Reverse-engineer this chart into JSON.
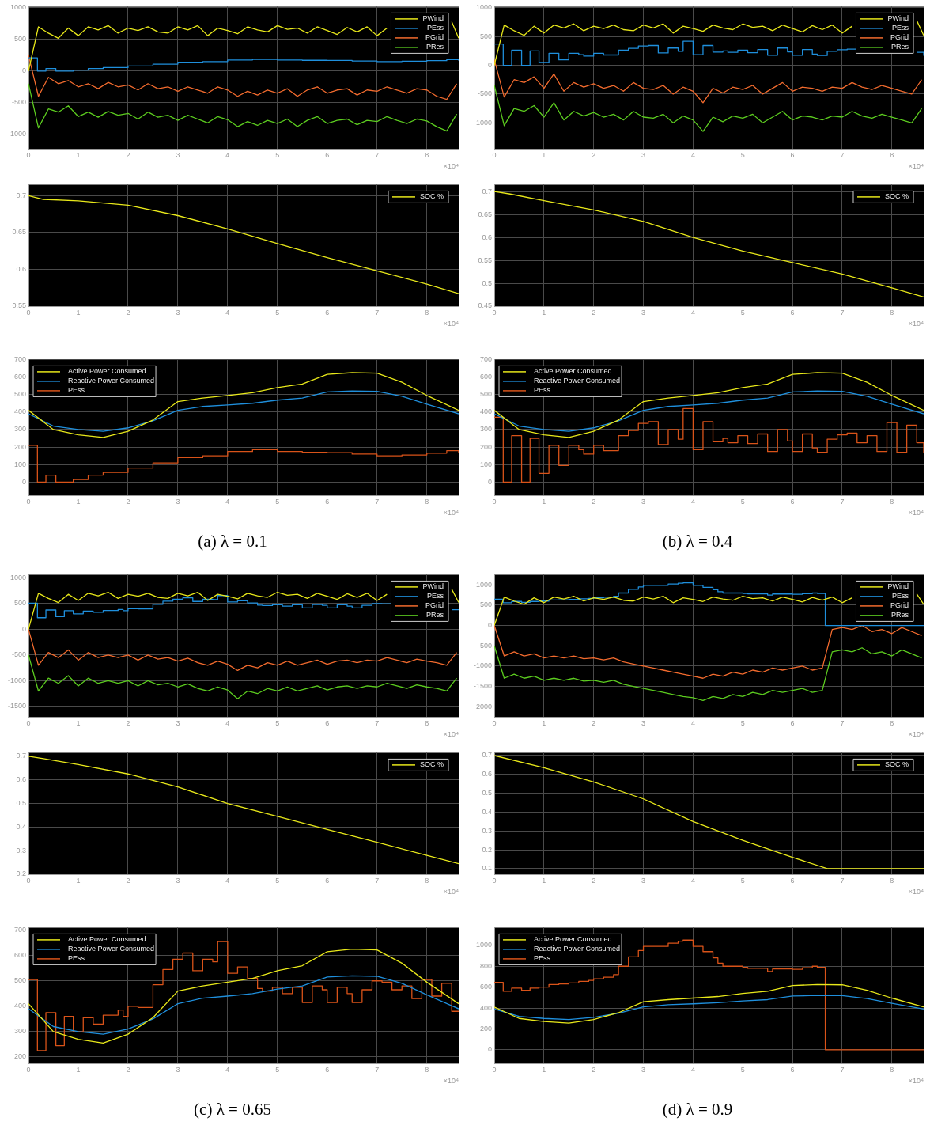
{
  "chart_data": [
    {
      "type": "line",
      "x": [
        0,
        0.2,
        0.4,
        0.6,
        0.8,
        1,
        1.2,
        1.4,
        1.6,
        1.8,
        2,
        2.2,
        2.4,
        2.6,
        2.8,
        3,
        3.2,
        3.4,
        3.6,
        3.8,
        4,
        4.2,
        4.4,
        4.6,
        4.8,
        5,
        5.2,
        5.4,
        5.6,
        5.8,
        6,
        6.2,
        6.4,
        6.6,
        6.8,
        7,
        7.2,
        7.4,
        7.6,
        7.8,
        8,
        8.2,
        8.4,
        8.6
      ],
      "xlim": [
        0,
        8.64
      ],
      "xticks": [
        0,
        1,
        2,
        3,
        4,
        5,
        6,
        7,
        8
      ],
      "xlabel": "×10⁴",
      "ylim": [
        -1230,
        1020
      ],
      "yticks": [
        -1000,
        -500,
        0,
        500,
        1000
      ],
      "grid": true,
      "legend": "top right",
      "series": [
        {
          "name": "PWind",
          "color": "#e8e81a",
          "x": [
            0,
            0.2,
            0.4,
            0.6,
            0.8,
            1,
            1.2,
            1.4,
            1.6,
            1.8,
            2,
            2.2,
            2.4,
            2.6,
            2.8,
            3,
            3.2,
            3.4,
            3.6,
            3.8,
            4,
            4.2,
            4.4,
            4.6,
            4.8,
            5,
            5.2,
            5.4,
            5.6,
            5.8,
            6,
            6.2,
            6.4,
            6.6,
            6.8,
            7,
            7.2,
            7.4,
            7.6,
            7.8,
            8,
            8.2,
            8.4,
            8.5,
            8.64
          ],
          "values": [
            0,
            700,
            600,
            520,
            680,
            560,
            700,
            650,
            720,
            600,
            680,
            640,
            700,
            620,
            600,
            700,
            650,
            720,
            560,
            680,
            640,
            590,
            700,
            650,
            620,
            720,
            660,
            680,
            600,
            700,
            640,
            580,
            690,
            620,
            700,
            560,
            680,
            null,
            null,
            null,
            null,
            null,
            null,
            780,
            520
          ]
        },
        {
          "name": "PEss",
          "color": "#1f8fdc",
          "type": "step",
          "x": [
            0,
            0.18,
            0.35,
            0.55,
            0.9,
            1.2,
            1.5,
            2,
            2.5,
            3,
            3.5,
            4,
            4.5,
            5,
            5.5,
            6,
            6.5,
            7,
            7.5,
            8,
            8.4,
            8.64
          ],
          "values": [
            210,
            0,
            40,
            0,
            15,
            40,
            55,
            80,
            110,
            140,
            150,
            175,
            185,
            175,
            170,
            168,
            160,
            150,
            155,
            165,
            180,
            165
          ]
        },
        {
          "name": "PGrid",
          "color": "#f26b2e",
          "values": [
            250,
            -400,
            -100,
            -200,
            -150,
            -250,
            -200,
            -280,
            -180,
            -250,
            -220,
            -300,
            -200,
            -280,
            -250,
            -320,
            -250,
            -300,
            -350,
            -250,
            -300,
            -400,
            -320,
            -380,
            -300,
            -350,
            -280,
            -400,
            -300,
            -250,
            -350,
            -300,
            -280,
            -380,
            -300,
            -320,
            -250,
            -300,
            -350,
            -280,
            -300,
            -400,
            -450,
            -200
          ]
        },
        {
          "name": "PRes",
          "color": "#5ccc1f",
          "values": [
            -200,
            -900,
            -600,
            -650,
            -550,
            -720,
            -650,
            -730,
            -640,
            -700,
            -670,
            -760,
            -650,
            -730,
            -700,
            -780,
            -700,
            -760,
            -820,
            -720,
            -770,
            -880,
            -800,
            -860,
            -780,
            -830,
            -760,
            -880,
            -780,
            -720,
            -830,
            -780,
            -760,
            -850,
            -780,
            -800,
            -720,
            -780,
            -830,
            -760,
            -790,
            -880,
            -950,
            -680
          ]
        }
      ]
    },
    {
      "type": "line",
      "x": [
        0,
        0.2,
        0.4,
        0.6,
        0.8,
        1,
        1.2,
        1.4,
        1.6,
        1.8,
        2,
        2.2,
        2.4,
        2.6,
        2.8,
        3,
        3.2,
        3.4,
        3.6,
        3.8,
        4,
        4.2,
        4.4,
        4.6,
        4.8,
        5,
        5.2,
        5.4,
        5.6,
        5.8,
        6,
        6.2,
        6.4,
        6.6,
        6.8,
        7,
        7.2,
        7.4,
        7.6,
        7.8,
        8,
        8.2,
        8.4,
        8.6
      ],
      "xlim": [
        0,
        8.64
      ],
      "xticks": [
        0,
        1,
        2,
        3,
        4,
        5,
        6,
        7,
        8
      ],
      "xlabel": "×10⁴",
      "ylim": [
        -1450,
        1020
      ],
      "yticks": [
        -1000,
        -500,
        0,
        500,
        1000
      ],
      "grid": true,
      "legend": "top right",
      "series": [
        {
          "name": "PWind",
          "color": "#e8e81a",
          "x": [
            0,
            0.2,
            0.4,
            0.6,
            0.8,
            1,
            1.2,
            1.4,
            1.6,
            1.8,
            2,
            2.2,
            2.4,
            2.6,
            2.8,
            3,
            3.2,
            3.4,
            3.6,
            3.8,
            4,
            4.2,
            4.4,
            4.6,
            4.8,
            5,
            5.2,
            5.4,
            5.6,
            5.8,
            6,
            6.2,
            6.4,
            6.6,
            6.8,
            7,
            7.2,
            7.4,
            7.6,
            7.8,
            8,
            8.2,
            8.4,
            8.5,
            8.64
          ],
          "values": [
            0,
            700,
            600,
            520,
            680,
            560,
            700,
            650,
            720,
            600,
            680,
            640,
            700,
            620,
            600,
            700,
            650,
            720,
            560,
            680,
            640,
            590,
            700,
            650,
            620,
            720,
            660,
            680,
            600,
            700,
            640,
            580,
            690,
            620,
            700,
            560,
            680,
            null,
            null,
            null,
            null,
            null,
            null,
            780,
            520
          ]
        },
        {
          "name": "PEss",
          "color": "#1f8fdc",
          "type": "step",
          "x": [
            0,
            0.18,
            0.35,
            0.55,
            0.72,
            0.9,
            1.1,
            1.3,
            1.5,
            1.7,
            1.8,
            2,
            2.2,
            2.5,
            2.7,
            2.9,
            3.1,
            3.3,
            3.5,
            3.7,
            3.8,
            4,
            4.2,
            4.4,
            4.6,
            4.7,
            4.9,
            5.1,
            5.3,
            5.5,
            5.7,
            5.9,
            6,
            6.2,
            6.4,
            6.5,
            6.7,
            6.9,
            7.1,
            7.3,
            7.5,
            7.7,
            7.9,
            8.1,
            8.3,
            8.5,
            8.64
          ],
          "values": [
            370,
            0,
            265,
            0,
            250,
            50,
            210,
            95,
            210,
            185,
            160,
            210,
            180,
            265,
            295,
            335,
            345,
            215,
            300,
            245,
            420,
            185,
            345,
            230,
            250,
            225,
            265,
            220,
            275,
            175,
            300,
            235,
            175,
            275,
            195,
            170,
            245,
            270,
            280,
            225,
            null,
            null,
            null,
            null,
            null,
            225,
            165
          ]
        },
        {
          "name": "PGrid",
          "color": "#f26b2e",
          "values": [
            100,
            -550,
            -250,
            -300,
            -200,
            -400,
            -150,
            -450,
            -300,
            -380,
            -320,
            -400,
            -350,
            -450,
            -300,
            -400,
            -420,
            -350,
            -500,
            -380,
            -450,
            -650,
            -400,
            -480,
            -380,
            -420,
            -350,
            -500,
            -400,
            -300,
            -450,
            -380,
            -400,
            -450,
            -380,
            -400,
            -300,
            -380,
            -420,
            -350,
            -400,
            -450,
            -500,
            -250
          ]
        },
        {
          "name": "PRes",
          "color": "#5ccc1f",
          "values": [
            -350,
            -1050,
            -750,
            -800,
            -700,
            -900,
            -650,
            -950,
            -800,
            -880,
            -820,
            -900,
            -850,
            -950,
            -800,
            -900,
            -920,
            -850,
            -1000,
            -880,
            -950,
            -1150,
            -900,
            -980,
            -880,
            -920,
            -850,
            -1000,
            -900,
            -800,
            -950,
            -880,
            -900,
            -950,
            -880,
            -900,
            -800,
            -880,
            -920,
            -850,
            -900,
            -950,
            -1000,
            -750
          ]
        }
      ]
    },
    {
      "type": "line",
      "x": [
        0,
        0.3,
        1,
        2,
        3,
        4,
        5,
        6,
        7,
        8,
        8.64
      ],
      "xlim": [
        0,
        8.64
      ],
      "xticks": [
        0,
        1,
        2,
        3,
        4,
        5,
        6,
        7,
        8
      ],
      "xlabel": "×10⁴",
      "ylim": [
        0.55,
        0.715
      ],
      "yticks": [
        0.55,
        0.6,
        0.65,
        0.7
      ],
      "grid": true,
      "legend": "top right",
      "series": [
        {
          "name": "SOC %",
          "color": "#e8e81a",
          "values": [
            0.7,
            0.695,
            0.693,
            0.687,
            0.673,
            0.655,
            0.635,
            0.616,
            0.598,
            0.58,
            0.567
          ]
        }
      ]
    },
    {
      "type": "line",
      "x": [
        0,
        0.3,
        1,
        2,
        3,
        4,
        5,
        6,
        7,
        8,
        8.64
      ],
      "xlim": [
        0,
        8.64
      ],
      "xticks": [
        0,
        1,
        2,
        3,
        4,
        5,
        6,
        7,
        8
      ],
      "xlabel": "×10⁴",
      "ylim": [
        0.45,
        0.715
      ],
      "yticks": [
        0.45,
        0.5,
        0.55,
        0.6,
        0.65,
        0.7
      ],
      "grid": true,
      "legend": "top right",
      "series": [
        {
          "name": "SOC %",
          "color": "#e8e81a",
          "values": [
            0.7,
            0.695,
            0.68,
            0.66,
            0.635,
            0.6,
            0.57,
            0.545,
            0.52,
            0.49,
            0.47
          ]
        }
      ]
    },
    {
      "type": "line",
      "x": [
        0,
        0.5,
        1,
        1.5,
        2,
        2.5,
        3,
        3.5,
        4,
        4.5,
        5,
        5.5,
        6,
        6.5,
        7,
        7.5,
        8,
        8.64
      ],
      "xlim": [
        0,
        8.64
      ],
      "xticks": [
        0,
        1,
        2,
        3,
        4,
        5,
        6,
        7,
        8
      ],
      "xlabel": "×10⁴",
      "ylim": [
        -75,
        700
      ],
      "yticks": [
        0,
        100,
        200,
        300,
        400,
        500,
        600,
        700
      ],
      "grid": true,
      "legend": "top left",
      "annotations": [
        "(a) λ = 0.1"
      ],
      "series": [
        {
          "name": "Active Power Consumed",
          "color": "#e8e81a",
          "values": [
            410,
            300,
            270,
            255,
            290,
            355,
            460,
            480,
            495,
            510,
            540,
            560,
            615,
            625,
            622,
            570,
            495,
            410
          ]
        },
        {
          "name": "Reactive Power Consumed",
          "color": "#1f8fdc",
          "values": [
            390,
            320,
            300,
            290,
            310,
            350,
            410,
            432,
            440,
            450,
            468,
            480,
            515,
            520,
            518,
            490,
            445,
            390
          ]
        },
        {
          "name": "PEss",
          "color": "#d95319",
          "type": "step",
          "x": [
            0,
            0.18,
            0.35,
            0.55,
            0.9,
            1.2,
            1.5,
            2,
            2.5,
            3,
            3.5,
            4,
            4.5,
            5,
            5.5,
            6,
            6.5,
            7,
            7.5,
            8,
            8.4,
            8.64
          ],
          "values": [
            210,
            0,
            40,
            0,
            15,
            40,
            55,
            80,
            110,
            140,
            150,
            175,
            185,
            175,
            170,
            168,
            160,
            150,
            155,
            165,
            180,
            165
          ]
        }
      ]
    },
    {
      "type": "line",
      "x": [
        0,
        0.5,
        1,
        1.5,
        2,
        2.5,
        3,
        3.5,
        4,
        4.5,
        5,
        5.5,
        6,
        6.5,
        7,
        7.5,
        8,
        8.64
      ],
      "xlim": [
        0,
        8.64
      ],
      "xticks": [
        0,
        1,
        2,
        3,
        4,
        5,
        6,
        7,
        8
      ],
      "xlabel": "×10⁴",
      "ylim": [
        -75,
        700
      ],
      "yticks": [
        0,
        100,
        200,
        300,
        400,
        500,
        600,
        700
      ],
      "grid": true,
      "legend": "top left",
      "annotations": [
        "(b) λ = 0.4"
      ],
      "series": [
        {
          "name": "Active Power Consumed",
          "color": "#e8e81a",
          "values": [
            410,
            300,
            270,
            255,
            290,
            355,
            460,
            480,
            495,
            510,
            540,
            560,
            615,
            625,
            622,
            570,
            495,
            410
          ]
        },
        {
          "name": "Reactive Power Consumed",
          "color": "#1f8fdc",
          "values": [
            390,
            320,
            300,
            290,
            310,
            350,
            410,
            432,
            440,
            450,
            468,
            480,
            515,
            520,
            518,
            490,
            445,
            390
          ]
        },
        {
          "name": "PEss",
          "color": "#d95319",
          "type": "step",
          "x": [
            0,
            0.18,
            0.35,
            0.55,
            0.72,
            0.9,
            1.1,
            1.3,
            1.5,
            1.7,
            1.8,
            2,
            2.2,
            2.5,
            2.7,
            2.9,
            3.1,
            3.3,
            3.5,
            3.7,
            3.8,
            4,
            4.2,
            4.4,
            4.6,
            4.7,
            4.9,
            5.1,
            5.3,
            5.5,
            5.7,
            5.9,
            6,
            6.2,
            6.4,
            6.5,
            6.7,
            6.9,
            7.1,
            7.3,
            7.5,
            7.7,
            7.9,
            8.1,
            8.3,
            8.5,
            8.64
          ],
          "values": [
            370,
            0,
            265,
            0,
            250,
            50,
            210,
            95,
            210,
            185,
            160,
            210,
            180,
            265,
            295,
            335,
            345,
            215,
            300,
            245,
            420,
            185,
            345,
            230,
            250,
            225,
            265,
            220,
            275,
            175,
            300,
            235,
            175,
            275,
            195,
            170,
            245,
            270,
            280,
            225,
            265,
            175,
            340,
            170,
            325,
            225,
            165
          ]
        }
      ]
    },
    {
      "type": "line",
      "x": [
        0,
        0.2,
        0.4,
        0.6,
        0.8,
        1,
        1.2,
        1.4,
        1.6,
        1.8,
        2,
        2.2,
        2.4,
        2.6,
        2.8,
        3,
        3.2,
        3.4,
        3.6,
        3.8,
        4,
        4.2,
        4.4,
        4.6,
        4.8,
        5,
        5.2,
        5.4,
        5.6,
        5.8,
        6,
        6.2,
        6.4,
        6.6,
        6.8,
        7,
        7.2,
        7.4,
        7.6,
        7.8,
        8,
        8.2,
        8.4,
        8.6
      ],
      "xlim": [
        0,
        8.64
      ],
      "xticks": [
        0,
        1,
        2,
        3,
        4,
        5,
        6,
        7,
        8
      ],
      "xlabel": "×10⁴",
      "ylim": [
        -1700,
        1060
      ],
      "yticks": [
        -1500,
        -1000,
        -500,
        0,
        500,
        1000
      ],
      "grid": true,
      "legend": "top right",
      "series": [
        {
          "name": "PWind",
          "color": "#e8e81a",
          "x": [
            0,
            0.2,
            0.4,
            0.6,
            0.8,
            1,
            1.2,
            1.4,
            1.6,
            1.8,
            2,
            2.2,
            2.4,
            2.6,
            2.8,
            3,
            3.2,
            3.4,
            3.6,
            3.8,
            4,
            4.2,
            4.4,
            4.6,
            4.8,
            5,
            5.2,
            5.4,
            5.6,
            5.8,
            6,
            6.2,
            6.4,
            6.6,
            6.8,
            7,
            7.2,
            7.4,
            7.6,
            7.8,
            8,
            8.2,
            8.4,
            8.5,
            8.64
          ],
          "values": [
            0,
            700,
            600,
            520,
            680,
            560,
            700,
            650,
            720,
            600,
            680,
            640,
            700,
            620,
            600,
            700,
            650,
            720,
            560,
            680,
            640,
            590,
            700,
            650,
            620,
            720,
            660,
            680,
            600,
            700,
            640,
            580,
            690,
            620,
            700,
            560,
            680,
            null,
            null,
            null,
            null,
            null,
            null,
            780,
            520
          ]
        },
        {
          "name": "PEss",
          "color": "#1f8fdc",
          "type": "step",
          "x": [
            0,
            0.18,
            0.35,
            0.55,
            0.72,
            0.9,
            1.1,
            1.3,
            1.5,
            1.8,
            1.9,
            2,
            2.2,
            2.5,
            2.7,
            2.9,
            3.1,
            3.3,
            3.5,
            3.7,
            3.8,
            4,
            4.2,
            4.4,
            4.6,
            4.7,
            4.9,
            5.1,
            5.3,
            5.5,
            5.7,
            5.9,
            6,
            6.2,
            6.4,
            6.5,
            6.7,
            6.9,
            7.1,
            7.3,
            7.5,
            7.7,
            7.9,
            8.1,
            8.3,
            8.5,
            8.64
          ],
          "values": [
            505,
            225,
            375,
            245,
            360,
            300,
            355,
            330,
            365,
            385,
            360,
            400,
            395,
            485,
            545,
            585,
            610,
            540,
            585,
            575,
            655,
            530,
            555,
            510,
            470,
            460,
            475,
            450,
            475,
            415,
            480,
            465,
            415,
            475,
            450,
            415,
            465,
            500,
            495,
            465,
            null,
            null,
            null,
            null,
            null,
            380,
            380
          ]
        },
        {
          "name": "PGrid",
          "color": "#f26b2e",
          "values": [
            0,
            -700,
            -450,
            -550,
            -400,
            -600,
            -450,
            -550,
            -500,
            -550,
            -500,
            -600,
            -500,
            -580,
            -550,
            -620,
            -560,
            -650,
            -700,
            -620,
            -680,
            -800,
            -700,
            -750,
            -650,
            -700,
            -620,
            -700,
            -650,
            -600,
            -680,
            -620,
            -600,
            -650,
            -600,
            -620,
            -550,
            -600,
            -650,
            -580,
            -620,
            -650,
            -700,
            -450
          ]
        },
        {
          "name": "PRes",
          "color": "#5ccc1f",
          "values": [
            -500,
            -1200,
            -950,
            -1050,
            -900,
            -1100,
            -950,
            -1050,
            -1000,
            -1050,
            -1000,
            -1100,
            -1000,
            -1080,
            -1050,
            -1120,
            -1060,
            -1150,
            -1200,
            -1120,
            -1180,
            -1350,
            -1200,
            -1250,
            -1150,
            -1200,
            -1120,
            -1200,
            -1150,
            -1100,
            -1180,
            -1120,
            -1100,
            -1150,
            -1100,
            -1120,
            -1050,
            -1100,
            -1150,
            -1080,
            -1120,
            -1150,
            -1200,
            -950
          ]
        }
      ]
    },
    {
      "type": "line",
      "x": [
        0,
        0.2,
        0.4,
        0.6,
        0.8,
        1,
        1.2,
        1.4,
        1.6,
        1.8,
        2,
        2.2,
        2.4,
        2.6,
        2.8,
        3,
        3.2,
        3.4,
        3.6,
        3.8,
        4,
        4.2,
        4.4,
        4.6,
        4.8,
        5,
        5.2,
        5.4,
        5.6,
        5.8,
        6,
        6.2,
        6.4,
        6.6,
        6.8,
        7,
        7.2,
        7.4,
        7.6,
        7.8,
        8,
        8.2,
        8.4,
        8.6
      ],
      "xlim": [
        0,
        8.64
      ],
      "xticks": [
        0,
        1,
        2,
        3,
        4,
        5,
        6,
        7,
        8
      ],
      "xlabel": "×10⁴",
      "ylim": [
        -2250,
        1250
      ],
      "yticks": [
        -2000,
        -1500,
        -1000,
        -500,
        0,
        500,
        1000
      ],
      "grid": true,
      "legend": "top right",
      "series": [
        {
          "name": "PWind",
          "color": "#e8e81a",
          "x": [
            0,
            0.2,
            0.4,
            0.6,
            0.8,
            1,
            1.2,
            1.4,
            1.6,
            1.8,
            2,
            2.2,
            2.4,
            2.6,
            2.8,
            3,
            3.2,
            3.4,
            3.6,
            3.8,
            4,
            4.2,
            4.4,
            4.6,
            4.8,
            5,
            5.2,
            5.4,
            5.6,
            5.8,
            6,
            6.2,
            6.4,
            6.6,
            6.8,
            7,
            7.2,
            7.4,
            7.6,
            7.8,
            8,
            8.2,
            8.4,
            8.5,
            8.64
          ],
          "values": [
            0,
            700,
            600,
            520,
            680,
            560,
            700,
            650,
            720,
            600,
            680,
            640,
            700,
            620,
            600,
            700,
            650,
            720,
            560,
            680,
            640,
            590,
            700,
            650,
            620,
            720,
            660,
            680,
            600,
            700,
            640,
            580,
            690,
            620,
            700,
            560,
            680,
            null,
            null,
            null,
            null,
            null,
            null,
            780,
            520
          ]
        },
        {
          "name": "PEss",
          "color": "#1f8fdc",
          "type": "step",
          "x": [
            0,
            0.18,
            0.35,
            0.55,
            0.72,
            0.9,
            1.1,
            1.3,
            1.5,
            1.7,
            1.9,
            2,
            2.2,
            2.4,
            2.5,
            2.7,
            2.9,
            3,
            3.5,
            3.7,
            3.8,
            4,
            4.2,
            4.4,
            4.5,
            4.6,
            5,
            5.1,
            5.5,
            5.6,
            6,
            6.2,
            6.4,
            6.5,
            6.66,
            8.64
          ],
          "values": [
            645,
            560,
            590,
            570,
            590,
            600,
            625,
            630,
            640,
            655,
            665,
            680,
            695,
            720,
            800,
            890,
            950,
            990,
            1020,
            1040,
            1050,
            990,
            940,
            880,
            830,
            800,
            790,
            780,
            750,
            775,
            770,
            785,
            800,
            790,
            0,
            0
          ]
        },
        {
          "name": "PGrid",
          "color": "#f26b2e",
          "values": [
            0,
            -750,
            -650,
            -750,
            -700,
            -800,
            -750,
            -800,
            -750,
            -820,
            -800,
            -850,
            -800,
            -900,
            -950,
            -1000,
            -1050,
            -1100,
            -1150,
            -1200,
            -1250,
            -1300,
            -1200,
            -1250,
            -1150,
            -1200,
            -1100,
            -1150,
            -1050,
            -1100,
            -1050,
            -1000,
            -1100,
            -1050,
            -100,
            -50,
            -100,
            0,
            -150,
            -100,
            -200,
            -50,
            -150,
            -250
          ]
        },
        {
          "name": "PRes",
          "color": "#5ccc1f",
          "values": [
            -500,
            -1300,
            -1200,
            -1300,
            -1250,
            -1350,
            -1300,
            -1350,
            -1300,
            -1370,
            -1350,
            -1400,
            -1350,
            -1450,
            -1500,
            -1550,
            -1600,
            -1650,
            -1700,
            -1750,
            -1780,
            -1850,
            -1750,
            -1800,
            -1700,
            -1750,
            -1650,
            -1700,
            -1600,
            -1650,
            -1600,
            -1550,
            -1650,
            -1600,
            -650,
            -600,
            -650,
            -550,
            -700,
            -650,
            -750,
            -600,
            -700,
            -800
          ]
        }
      ]
    },
    {
      "type": "line",
      "x": [
        0,
        0.3,
        1,
        2,
        3,
        4,
        5,
        6,
        7,
        8,
        8.64
      ],
      "xlim": [
        0,
        8.64
      ],
      "xticks": [
        0,
        1,
        2,
        3,
        4,
        5,
        6,
        7,
        8
      ],
      "xlabel": "×10⁴",
      "ylim": [
        0.2,
        0.715
      ],
      "yticks": [
        0.2,
        0.3,
        0.4,
        0.5,
        0.6,
        0.7
      ],
      "grid": true,
      "legend": "top right",
      "series": [
        {
          "name": "SOC %",
          "color": "#e8e81a",
          "values": [
            0.7,
            0.69,
            0.665,
            0.625,
            0.57,
            0.5,
            0.445,
            0.39,
            0.335,
            0.28,
            0.245
          ]
        }
      ]
    },
    {
      "type": "line",
      "x": [
        0,
        1,
        2,
        3,
        4,
        5,
        6,
        6.7,
        8.64
      ],
      "xlim": [
        0,
        8.64
      ],
      "xticks": [
        0,
        1,
        2,
        3,
        4,
        5,
        6,
        7,
        8
      ],
      "xlabel": "×10⁴",
      "ylim": [
        0.07,
        0.715
      ],
      "yticks": [
        0.1,
        0.2,
        0.3,
        0.4,
        0.5,
        0.6,
        0.7
      ],
      "grid": true,
      "legend": "top right",
      "series": [
        {
          "name": "SOC %",
          "color": "#e8e81a",
          "values": [
            0.7,
            0.635,
            0.56,
            0.47,
            0.35,
            0.25,
            0.16,
            0.1,
            0.1
          ]
        }
      ]
    },
    {
      "type": "line",
      "x": [
        0,
        0.5,
        1,
        1.5,
        2,
        2.5,
        3,
        3.5,
        4,
        4.5,
        5,
        5.5,
        6,
        6.5,
        7,
        7.5,
        8,
        8.64
      ],
      "xlim": [
        0,
        8.64
      ],
      "xticks": [
        0,
        1,
        2,
        3,
        4,
        5,
        6,
        7,
        8
      ],
      "xlabel": "×10⁴",
      "ylim": [
        175,
        710
      ],
      "yticks": [
        200,
        300,
        400,
        500,
        600,
        700
      ],
      "grid": true,
      "legend": "top left",
      "annotations": [
        "(c) λ = 0.65"
      ],
      "series": [
        {
          "name": "Active Power Consumed",
          "color": "#e8e81a",
          "values": [
            410,
            300,
            270,
            255,
            290,
            355,
            460,
            480,
            495,
            510,
            540,
            560,
            615,
            625,
            622,
            570,
            495,
            410
          ]
        },
        {
          "name": "Reactive Power Consumed",
          "color": "#1f8fdc",
          "values": [
            390,
            320,
            300,
            290,
            310,
            350,
            410,
            432,
            440,
            450,
            468,
            480,
            515,
            520,
            518,
            490,
            445,
            390
          ]
        },
        {
          "name": "PEss",
          "color": "#d95319",
          "type": "step",
          "x": [
            0,
            0.18,
            0.35,
            0.55,
            0.72,
            0.9,
            1.1,
            1.3,
            1.5,
            1.8,
            1.9,
            2,
            2.2,
            2.5,
            2.7,
            2.9,
            3.1,
            3.3,
            3.5,
            3.7,
            3.8,
            4,
            4.2,
            4.4,
            4.6,
            4.7,
            4.9,
            5.1,
            5.3,
            5.5,
            5.7,
            5.9,
            6,
            6.2,
            6.4,
            6.5,
            6.7,
            6.9,
            7.1,
            7.3,
            7.5,
            7.7,
            7.9,
            8.1,
            8.3,
            8.5,
            8.64
          ],
          "values": [
            505,
            225,
            375,
            245,
            360,
            300,
            355,
            330,
            365,
            385,
            360,
            400,
            395,
            485,
            545,
            585,
            610,
            540,
            585,
            575,
            655,
            530,
            555,
            510,
            470,
            460,
            475,
            450,
            475,
            415,
            480,
            465,
            415,
            475,
            450,
            415,
            465,
            500,
            495,
            465,
            480,
            430,
            505,
            440,
            490,
            380,
            380
          ]
        }
      ]
    },
    {
      "type": "line",
      "x": [
        0,
        0.5,
        1,
        1.5,
        2,
        2.5,
        3,
        3.5,
        4,
        4.5,
        5,
        5.5,
        6,
        6.5,
        7,
        7.5,
        8,
        8.64
      ],
      "xlim": [
        0,
        8.64
      ],
      "xticks": [
        0,
        1,
        2,
        3,
        4,
        5,
        6,
        7,
        8
      ],
      "xlabel": "×10⁴",
      "ylim": [
        -130,
        1170
      ],
      "yticks": [
        0,
        200,
        400,
        600,
        800,
        1000
      ],
      "grid": true,
      "legend": "top left",
      "annotations": [
        "(d) λ = 0.9"
      ],
      "series": [
        {
          "name": "Active Power Consumed",
          "color": "#e8e81a",
          "values": [
            410,
            300,
            270,
            255,
            290,
            355,
            460,
            480,
            495,
            510,
            540,
            560,
            615,
            625,
            622,
            570,
            495,
            410
          ]
        },
        {
          "name": "Reactive Power Consumed",
          "color": "#1f8fdc",
          "values": [
            390,
            320,
            300,
            290,
            310,
            350,
            410,
            432,
            440,
            450,
            468,
            480,
            515,
            520,
            518,
            490,
            445,
            390
          ]
        },
        {
          "name": "PEss",
          "color": "#d95319",
          "type": "step",
          "x": [
            0,
            0.18,
            0.35,
            0.55,
            0.72,
            0.9,
            1.1,
            1.3,
            1.5,
            1.7,
            1.9,
            2,
            2.2,
            2.4,
            2.5,
            2.7,
            2.9,
            3,
            3.5,
            3.7,
            3.8,
            4,
            4.2,
            4.4,
            4.5,
            4.6,
            5,
            5.1,
            5.5,
            5.6,
            6,
            6.2,
            6.4,
            6.5,
            6.66,
            8.64
          ],
          "values": [
            645,
            560,
            590,
            570,
            590,
            600,
            625,
            630,
            640,
            655,
            665,
            680,
            695,
            720,
            800,
            890,
            950,
            990,
            1020,
            1040,
            1050,
            990,
            940,
            880,
            830,
            800,
            790,
            780,
            750,
            775,
            770,
            785,
            800,
            790,
            0,
            0
          ]
        }
      ]
    }
  ]
}
